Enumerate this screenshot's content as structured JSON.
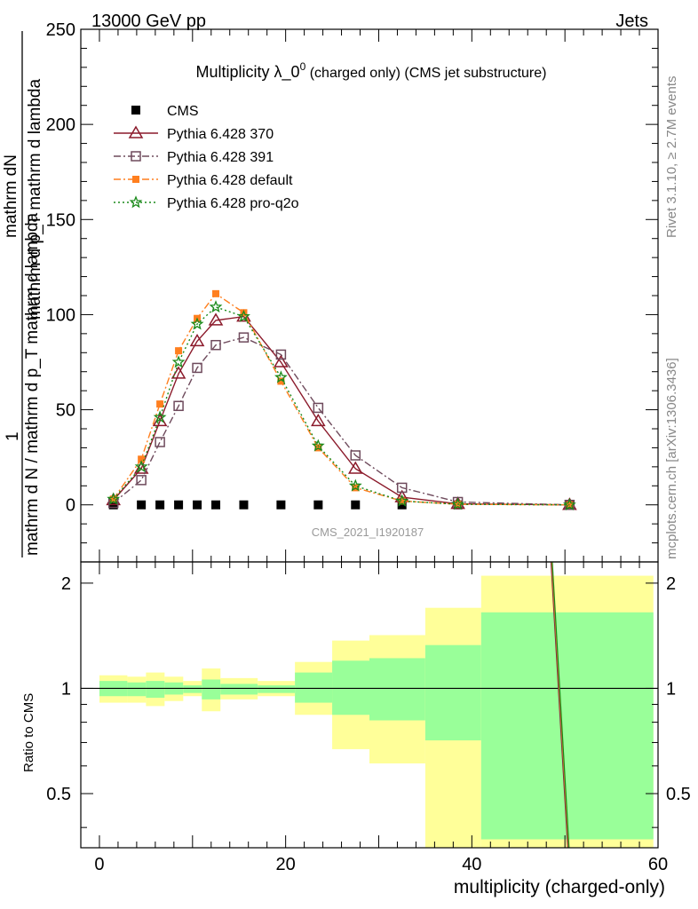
{
  "header": {
    "left": "13000 GeV pp",
    "right": "Jets"
  },
  "side_text": {
    "rivet": "Rivet 3.1.10, ≥ 2.7M events",
    "mcplots": "mcplots.cern.ch [arXiv:1306.3436]"
  },
  "chart_data": [
    {
      "type": "scatter",
      "panel": "main",
      "title_main": "Multiplicity λ_0",
      "title_sup": "0",
      "title_suffix": " (charged only) (CMS jet substructure)",
      "watermark": "CMS_2021_I1920187",
      "ylabel_top": "mathrm dN",
      "ylabel_mid": "mathrm d p_T mathrm d lambda",
      "ylabel_one": "1",
      "ylabel_bottom": "mathrm d N / mathrm d p_T mathrm d lambda",
      "ylim": [
        -30,
        250
      ],
      "xlim": [
        -2,
        60
      ],
      "yticks": [
        0,
        50,
        100,
        150,
        200,
        250
      ],
      "legend_position": "top-left",
      "x": [
        1.5,
        4.5,
        6.5,
        8.5,
        10.5,
        12.5,
        15.5,
        19.5,
        23.5,
        27.5,
        32.5,
        38.5,
        50.5
      ],
      "series": [
        {
          "name": "CMS",
          "color": "#000000",
          "marker": "square",
          "values": [
            0,
            0,
            0,
            0,
            0,
            0,
            0,
            0,
            0,
            0,
            0,
            0,
            0
          ]
        },
        {
          "name": "Pythia 6.428 370",
          "color": "#8b1a2b",
          "marker": "triangle-open",
          "line": "solid",
          "values": [
            2.5,
            19,
            44,
            69,
            86,
            97,
            99,
            75,
            44,
            19,
            4,
            0.5,
            0
          ]
        },
        {
          "name": "Pythia 6.428 391",
          "color": "#6e4a5c",
          "marker": "square-open",
          "line": "dashdot",
          "values": [
            1,
            13,
            33,
            52,
            72,
            84,
            88,
            79,
            51,
            26,
            9,
            1.5,
            0
          ]
        },
        {
          "name": "Pythia 6.428 default",
          "color": "#ff7f1f",
          "marker": "square-filled",
          "line": "dashdot",
          "values": [
            3,
            24,
            53,
            81,
            98,
            111,
            101,
            65,
            30,
            9,
            2,
            0.3,
            0
          ]
        },
        {
          "name": "Pythia 6.428 pro-q2o",
          "color": "#1a8a1a",
          "marker": "star",
          "line": "dotted",
          "values": [
            3,
            20,
            46,
            75,
            95,
            104,
            99,
            67,
            31,
            10,
            2,
            0.3,
            0
          ]
        }
      ]
    },
    {
      "type": "area",
      "panel": "ratio",
      "ylabel": "Ratio to CMS",
      "xlabel": "multiplicity (charged-only)",
      "ylim": [
        0.35,
        2.3
      ],
      "xlim": [
        -2,
        60
      ],
      "xticks": [
        0,
        20,
        40,
        60
      ],
      "yticks": [
        0.5,
        1,
        2
      ],
      "bins": [
        {
          "x0": 0,
          "x1": 3,
          "inner": [
            0.95,
            1.05
          ],
          "outer": [
            0.91,
            1.09
          ]
        },
        {
          "x0": 3,
          "x1": 5,
          "inner": [
            0.95,
            1.04
          ],
          "outer": [
            0.91,
            1.08
          ]
        },
        {
          "x0": 5,
          "x1": 7,
          "inner": [
            0.94,
            1.05
          ],
          "outer": [
            0.89,
            1.11
          ]
        },
        {
          "x0": 7,
          "x1": 9,
          "inner": [
            0.96,
            1.04
          ],
          "outer": [
            0.92,
            1.08
          ]
        },
        {
          "x0": 9,
          "x1": 11,
          "inner": [
            0.97,
            1.02
          ],
          "outer": [
            0.95,
            1.05
          ]
        },
        {
          "x0": 11,
          "x1": 13,
          "inner": [
            0.93,
            1.06
          ],
          "outer": [
            0.86,
            1.14
          ]
        },
        {
          "x0": 13,
          "x1": 17,
          "inner": [
            0.96,
            1.03
          ],
          "outer": [
            0.93,
            1.07
          ]
        },
        {
          "x0": 17,
          "x1": 21,
          "inner": [
            0.97,
            1.02
          ],
          "outer": [
            0.95,
            1.05
          ]
        },
        {
          "x0": 21,
          "x1": 25,
          "inner": [
            0.91,
            1.11
          ],
          "outer": [
            0.84,
            1.19
          ]
        },
        {
          "x0": 25,
          "x1": 29,
          "inner": [
            0.84,
            1.2
          ],
          "outer": [
            0.67,
            1.37
          ]
        },
        {
          "x0": 29,
          "x1": 35,
          "inner": [
            0.81,
            1.22
          ],
          "outer": [
            0.61,
            1.42
          ]
        },
        {
          "x0": 35,
          "x1": 41,
          "inner": [
            0.71,
            1.33
          ],
          "outer": [
            0.35,
            1.7
          ]
        },
        {
          "x0": 41,
          "x1": 59.5,
          "inner": [
            0.37,
            1.65
          ],
          "outer": [
            0.35,
            2.1
          ]
        }
      ],
      "line_x": [
        48.5,
        50.3
      ]
    }
  ]
}
